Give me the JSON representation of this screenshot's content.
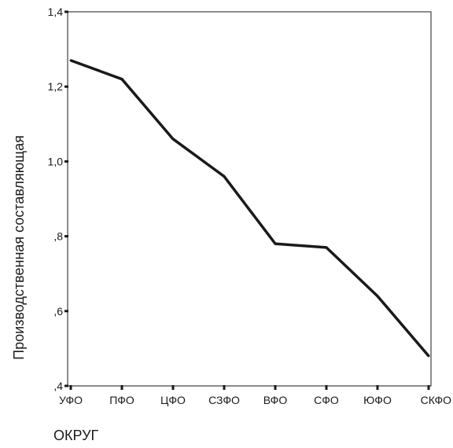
{
  "chart_data": {
    "type": "line",
    "xlabel": "ОКРУГ",
    "ylabel": "Производственная составляющая",
    "categories": [
      "УФО",
      "ПФО",
      "ЦФО",
      "СЗФО",
      "ВФО",
      "СФО",
      "ЮФО",
      "СКФО"
    ],
    "series": [
      {
        "values": [
          1.27,
          1.22,
          1.06,
          0.96,
          0.78,
          0.77,
          0.64,
          0.48
        ]
      }
    ],
    "ylim": [
      0.4,
      1.4
    ],
    "yticks": [
      0.4,
      0.6,
      0.8,
      1.0,
      1.2,
      1.4
    ],
    "ytick_labels": [
      ",4",
      ",6",
      ",8",
      "1,0",
      "1,2",
      "1,4"
    ],
    "grid": false,
    "line_color": "#1a1a1a"
  }
}
